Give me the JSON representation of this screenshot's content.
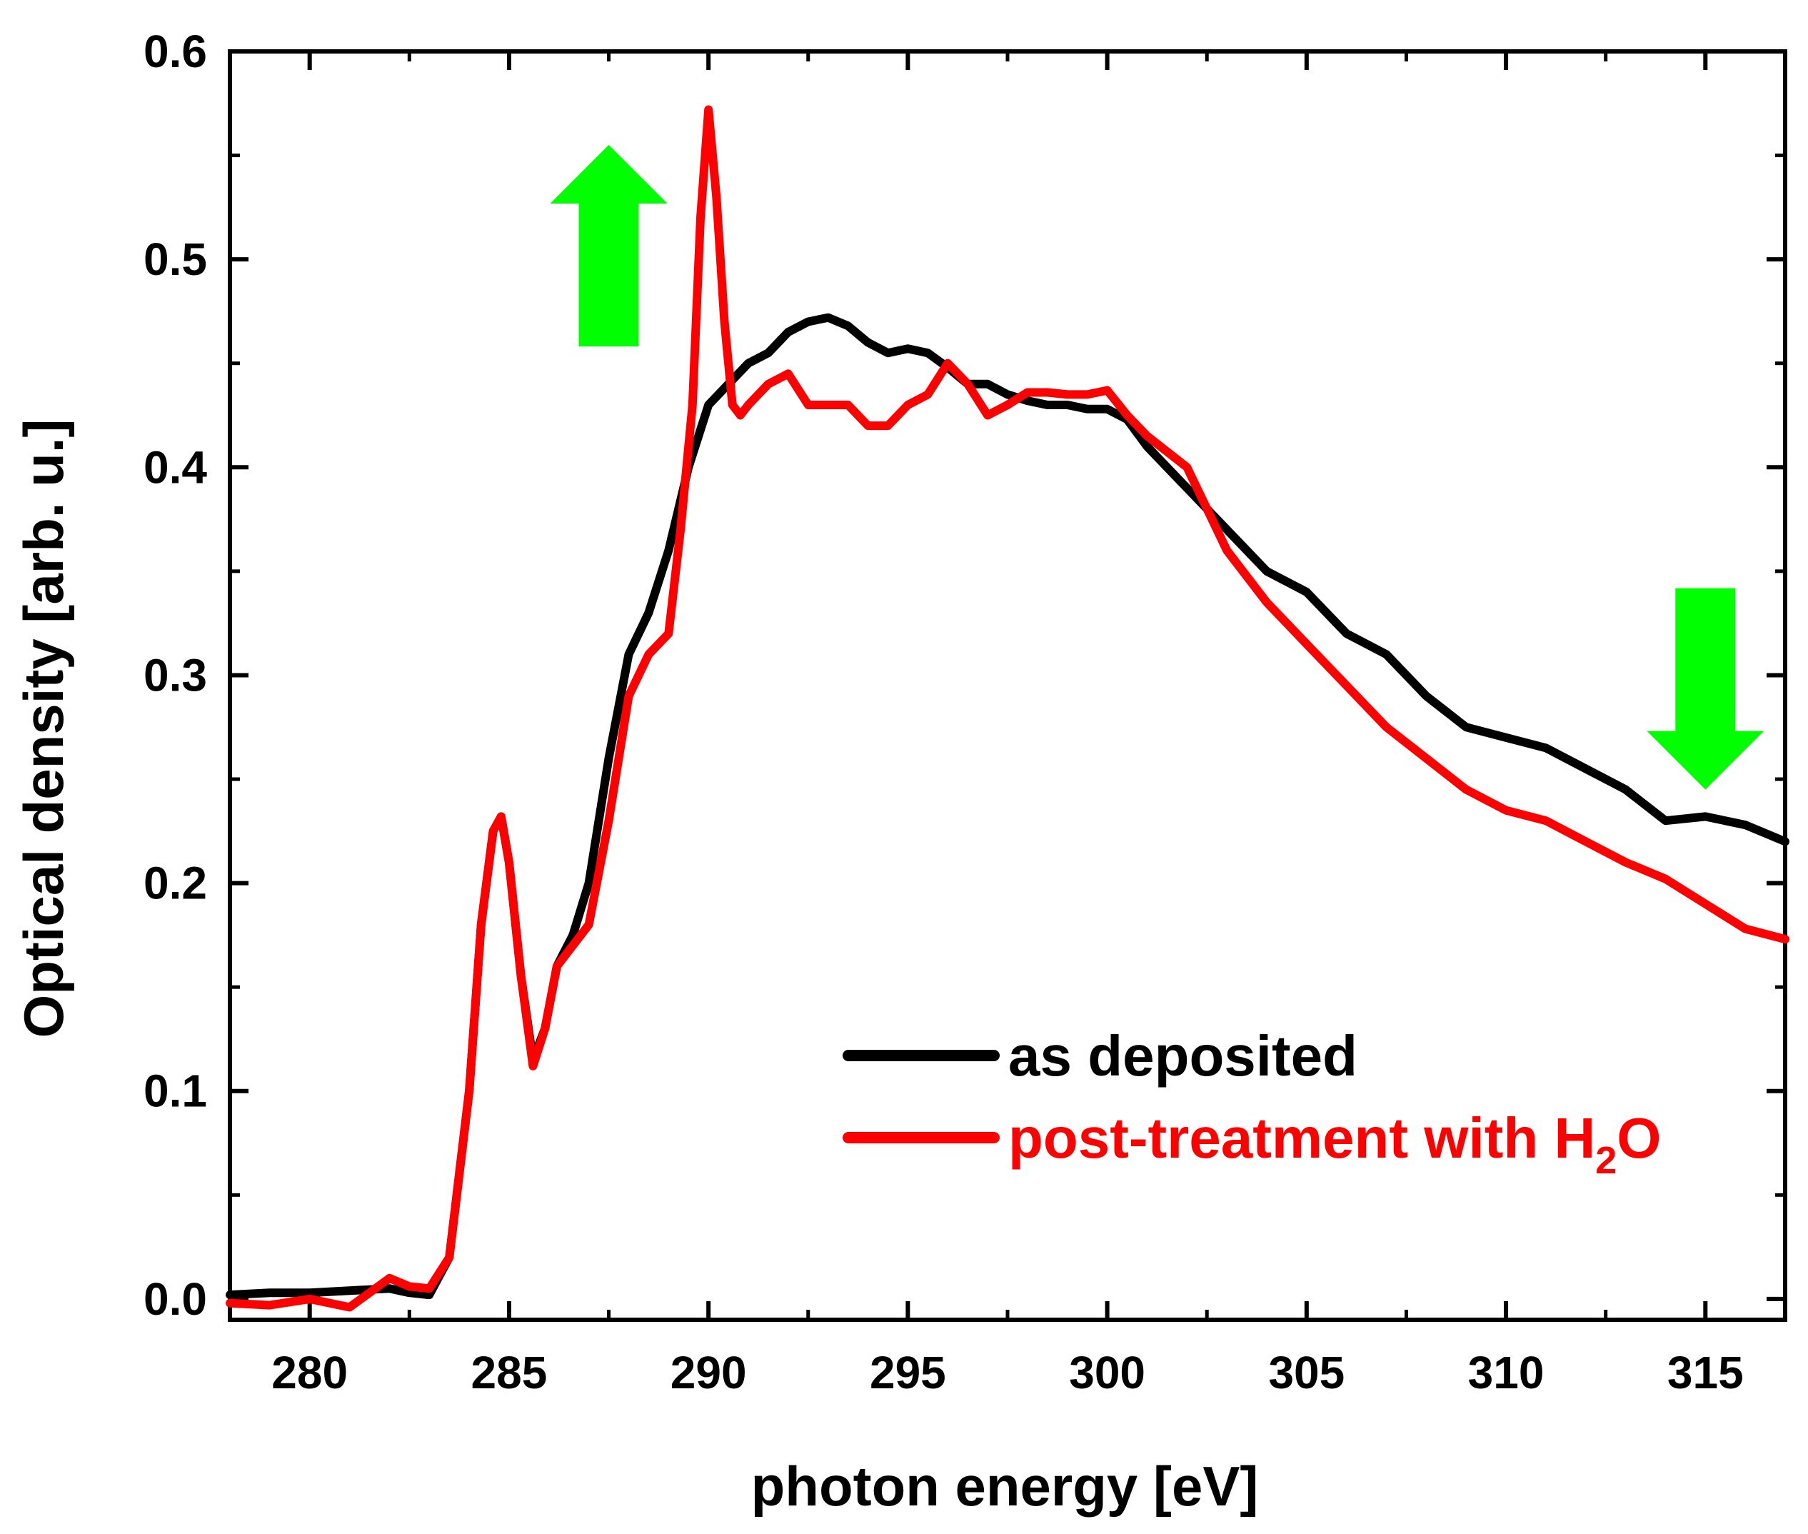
{
  "chart_data": {
    "type": "line",
    "title": "",
    "xlabel": "photon energy [eV]",
    "ylabel": "Optical density [arb. u.]",
    "xlim": [
      278,
      317
    ],
    "ylim": [
      -0.01,
      0.6
    ],
    "x_ticks": [
      280,
      285,
      290,
      295,
      300,
      305,
      310,
      315
    ],
    "x_tick_labels": [
      "280",
      "285",
      "290",
      "295",
      "300",
      "305",
      "310",
      "315"
    ],
    "y_ticks": [
      0.0,
      0.1,
      0.2,
      0.3,
      0.4,
      0.5,
      0.6
    ],
    "y_tick_labels": [
      "0.0",
      "0.1",
      "0.2",
      "0.3",
      "0.4",
      "0.5",
      "0.6"
    ],
    "grid": false,
    "legend_position": "bottom-right",
    "series": [
      {
        "name": "as deposited",
        "color": "#000000",
        "x": [
          278.0,
          279.0,
          280.0,
          281.0,
          282.0,
          282.5,
          283.0,
          283.5,
          284.0,
          284.3,
          284.6,
          284.8,
          285.0,
          285.3,
          285.6,
          285.9,
          286.2,
          286.6,
          287.0,
          287.5,
          288.0,
          288.5,
          289.0,
          289.5,
          290.0,
          290.5,
          291.0,
          291.5,
          292.0,
          292.5,
          293.0,
          293.5,
          294.0,
          294.5,
          295.0,
          295.5,
          296.0,
          296.5,
          297.0,
          297.5,
          298.0,
          298.5,
          299.0,
          299.5,
          300.0,
          300.5,
          301.0,
          302.0,
          303.0,
          304.0,
          305.0,
          306.0,
          307.0,
          308.0,
          309.0,
          310.0,
          311.0,
          312.0,
          313.0,
          314.0,
          315.0,
          316.0,
          317.0
        ],
        "values": [
          0.002,
          0.003,
          0.003,
          0.004,
          0.005,
          0.003,
          0.002,
          0.02,
          0.1,
          0.18,
          0.225,
          0.232,
          0.21,
          0.155,
          0.115,
          0.13,
          0.16,
          0.175,
          0.2,
          0.26,
          0.31,
          0.33,
          0.36,
          0.4,
          0.43,
          0.44,
          0.45,
          0.455,
          0.465,
          0.47,
          0.472,
          0.468,
          0.46,
          0.455,
          0.457,
          0.455,
          0.448,
          0.44,
          0.44,
          0.435,
          0.432,
          0.43,
          0.43,
          0.428,
          0.428,
          0.423,
          0.41,
          0.39,
          0.37,
          0.35,
          0.34,
          0.32,
          0.31,
          0.29,
          0.275,
          0.27,
          0.265,
          0.255,
          0.245,
          0.23,
          0.232,
          0.228,
          0.22
        ]
      },
      {
        "name": "post-treatment with H",
        "name_subscript": "2",
        "name_suffix": "O",
        "color": "#ff0000",
        "x": [
          278.0,
          279.0,
          280.0,
          281.0,
          281.5,
          282.0,
          282.5,
          283.0,
          283.5,
          284.0,
          284.3,
          284.6,
          284.8,
          285.0,
          285.3,
          285.6,
          285.9,
          286.2,
          286.6,
          287.0,
          287.5,
          288.0,
          288.5,
          289.0,
          289.3,
          289.6,
          289.8,
          290.0,
          290.2,
          290.4,
          290.6,
          290.8,
          291.0,
          291.5,
          292.0,
          292.5,
          293.0,
          293.5,
          294.0,
          294.5,
          295.0,
          295.5,
          296.0,
          296.5,
          297.0,
          297.5,
          298.0,
          298.5,
          299.0,
          299.5,
          300.0,
          300.5,
          301.0,
          302.0,
          303.0,
          304.0,
          305.0,
          306.0,
          307.0,
          308.0,
          309.0,
          310.0,
          311.0,
          312.0,
          313.0,
          314.0,
          315.0,
          316.0,
          317.0
        ],
        "values": [
          -0.002,
          -0.003,
          0.0,
          -0.004,
          0.003,
          0.01,
          0.006,
          0.005,
          0.02,
          0.1,
          0.18,
          0.225,
          0.232,
          0.21,
          0.155,
          0.112,
          0.13,
          0.16,
          0.17,
          0.18,
          0.23,
          0.29,
          0.31,
          0.32,
          0.37,
          0.43,
          0.52,
          0.572,
          0.53,
          0.47,
          0.43,
          0.425,
          0.43,
          0.44,
          0.445,
          0.43,
          0.43,
          0.43,
          0.42,
          0.42,
          0.43,
          0.435,
          0.45,
          0.44,
          0.425,
          0.43,
          0.436,
          0.436,
          0.435,
          0.435,
          0.437,
          0.425,
          0.415,
          0.4,
          0.36,
          0.335,
          0.315,
          0.295,
          0.275,
          0.26,
          0.245,
          0.235,
          0.23,
          0.22,
          0.21,
          0.202,
          0.19,
          0.178,
          0.173
        ]
      }
    ],
    "annotations": [
      {
        "type": "arrow",
        "direction": "up",
        "color": "#00ff00",
        "near_x": 287.5,
        "near_y": 0.54
      },
      {
        "type": "arrow",
        "direction": "down",
        "color": "#00ff00",
        "near_x": 315.0,
        "near_y": 0.28
      }
    ]
  }
}
